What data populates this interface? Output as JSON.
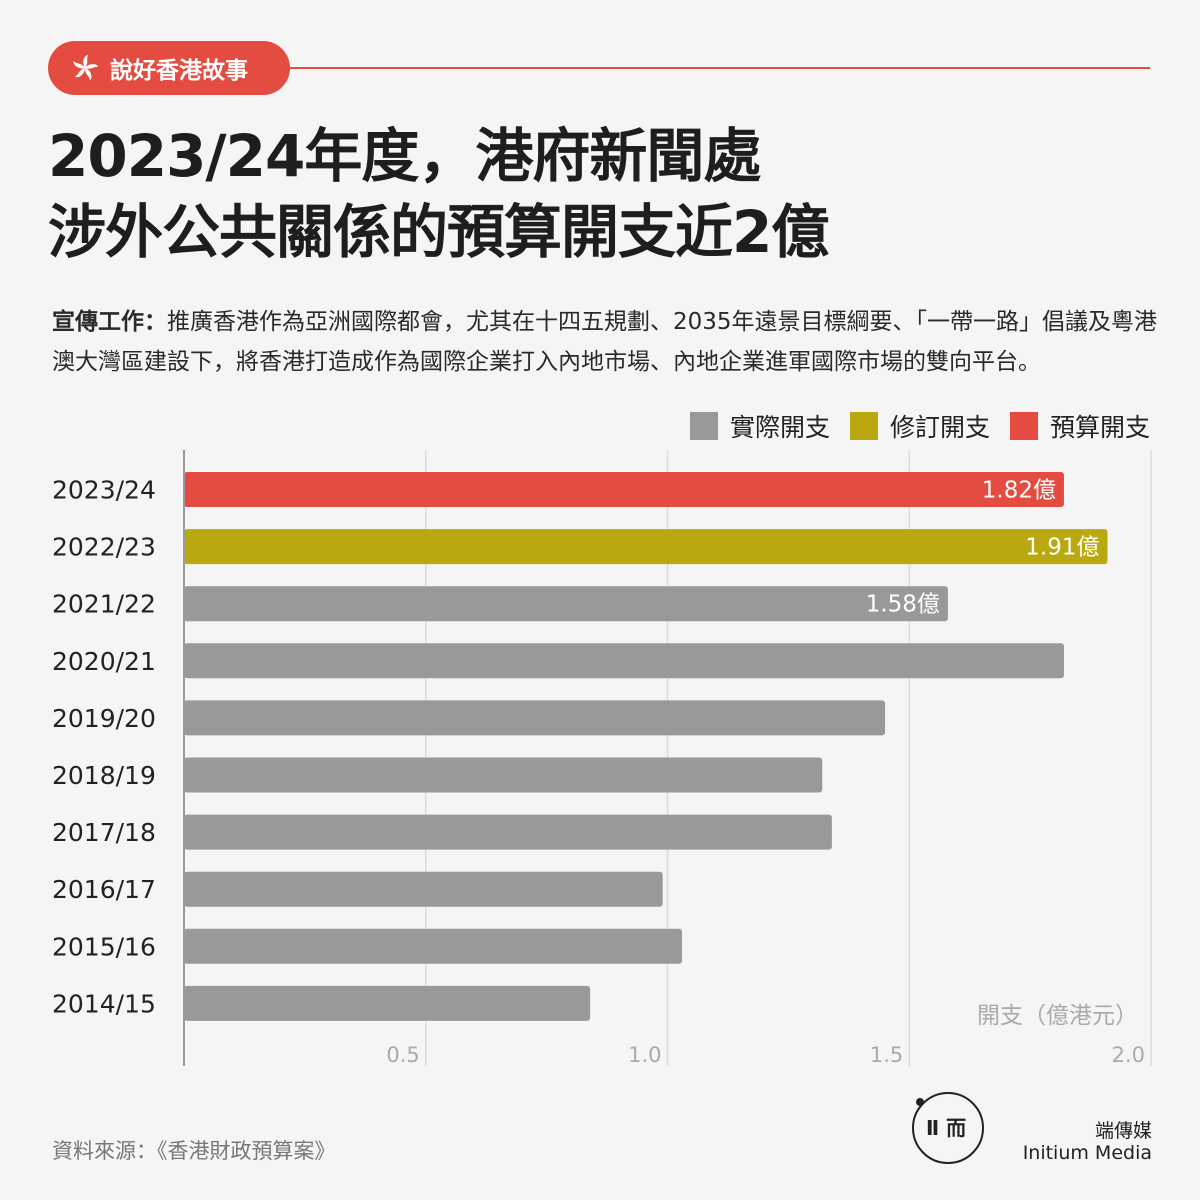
{
  "tag": {
    "label": "說好香港故事"
  },
  "title": {
    "line1": "2023/24年度，港府新聞處",
    "line2": "涉外公共關係的預算開支近2億"
  },
  "description": {
    "label": "宣傳工作：",
    "text": "推廣香港作為亞洲國際都會，尤其在十四五規劃、2035年遠景目標綱要、「一帶一路」倡議及粵港澳大灣區建設下，將香港打造成作為國際企業打入內地市場、內地企業進軍國際市場的雙向平台。"
  },
  "legend": [
    {
      "label": "實際開支",
      "color": "#999999"
    },
    {
      "label": "修訂開支",
      "color": "#b9a80f"
    },
    {
      "label": "預算開支",
      "color": "#e44c41"
    }
  ],
  "chart_data": {
    "type": "bar",
    "orientation": "horizontal",
    "categories": [
      "2023/24",
      "2022/23",
      "2021/22",
      "2020/21",
      "2019/20",
      "2018/19",
      "2017/18",
      "2016/17",
      "2015/16",
      "2014/15"
    ],
    "values": [
      1.82,
      1.91,
      1.58,
      1.82,
      1.45,
      1.32,
      1.34,
      0.99,
      1.03,
      0.84
    ],
    "value_types": [
      "預算開支",
      "修訂開支",
      "實際開支",
      "實際開支",
      "實際開支",
      "實際開支",
      "實際開支",
      "實際開支",
      "實際開支",
      "實際開支"
    ],
    "data_labels": [
      "1.82億",
      "1.91億",
      "1.58億",
      "",
      "",
      "",
      "",
      "",
      "",
      ""
    ],
    "xlabel": "開支（億港元）",
    "ylabel": "",
    "xlim": [
      0,
      2.0
    ],
    "xticks": [
      0.5,
      1.0,
      1.5,
      2.0
    ],
    "xtick_labels": [
      "0.5",
      "1.0",
      "1.5",
      "2.0"
    ],
    "grid": true,
    "colors": {
      "實際開支": "#999999",
      "修訂開支": "#b9a80f",
      "預算開支": "#e44c41"
    }
  },
  "source": "資料來源：《香港財政預算案》",
  "brand": {
    "logo_glyph": "Ⅱ 而",
    "name_cn": "端傳媒",
    "name_en": "Initium Media"
  }
}
